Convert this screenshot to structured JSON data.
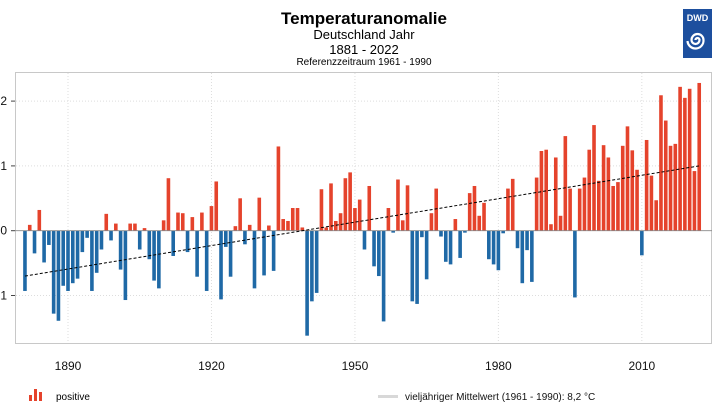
{
  "chart_data": {
    "type": "bar",
    "title": "Temperaturanomalie",
    "subtitle": "Deutschland Jahr",
    "period": "1881 - 2022",
    "reference": "Referenzzeitraum 1961 - 1990",
    "x_start": 1881,
    "x_end": 2022,
    "xlim": [
      1878,
      2024
    ],
    "ylim": [
      -1.75,
      2.5
    ],
    "x_ticks": [
      1890,
      1920,
      1950,
      1980,
      2010
    ],
    "x_tick_labels": [
      "1890",
      "1920",
      "1950",
      "1980",
      "2010"
    ],
    "y_ticks": [
      2,
      1,
      0,
      -1
    ],
    "y_tick_labels": [
      "2",
      "1",
      "0",
      "-1"
    ],
    "grid": true,
    "colors": {
      "positive": "#e5432c",
      "negative": "#1f69a6",
      "trend": "#000000",
      "logo": "#1d4f9e"
    },
    "values": [
      -0.93,
      0.09,
      -0.35,
      0.32,
      -0.49,
      -0.22,
      -1.28,
      -1.39,
      -0.85,
      -0.93,
      -0.81,
      -0.74,
      -0.33,
      -0.11,
      -0.93,
      -0.65,
      -0.29,
      0.26,
      -0.15,
      0.11,
      -0.6,
      -1.07,
      0.11,
      0.11,
      -0.29,
      0.04,
      -0.44,
      -0.77,
      -0.89,
      0.16,
      0.81,
      -0.39,
      0.28,
      0.27,
      -0.33,
      0.21,
      -0.71,
      0.28,
      -0.93,
      0.38,
      0.76,
      -1.06,
      -0.25,
      -0.71,
      0.07,
      0.5,
      -0.21,
      0.09,
      -0.89,
      0.51,
      -0.69,
      0.08,
      -0.62,
      1.3,
      0.18,
      0.15,
      0.35,
      0.35,
      0.05,
      -1.62,
      -1.09,
      -0.96,
      0.64,
      0.05,
      0.73,
      0.15,
      0.27,
      0.81,
      0.9,
      0.35,
      0.48,
      -0.29,
      0.69,
      -0.55,
      -0.7,
      -1.4,
      0.35,
      -0.03,
      0.79,
      0.16,
      0.7,
      -1.09,
      -1.13,
      -0.1,
      -0.75,
      0.27,
      0.65,
      -0.09,
      -0.48,
      -0.52,
      0.18,
      -0.42,
      -0.03,
      0.58,
      0.69,
      0.23,
      0.43,
      -0.44,
      -0.52,
      -0.61,
      -0.04,
      0.65,
      0.8,
      -0.27,
      -0.81,
      -0.3,
      -0.79,
      0.82,
      1.23,
      1.25,
      0.1,
      1.13,
      0.23,
      1.46,
      0.65,
      -1.03,
      0.65,
      0.82,
      1.25,
      1.63,
      0.77,
      1.32,
      1.13,
      0.69,
      0.75,
      1.31,
      1.61,
      1.24,
      0.94,
      -0.38,
      1.4,
      0.85,
      0.47,
      2.09,
      1.7,
      1.31,
      1.34,
      2.22,
      2.05,
      2.19,
      0.92,
      2.28
    ],
    "trend": {
      "start": [
        1881,
        -0.7
      ],
      "end": [
        2022,
        1.0
      ]
    },
    "legend": {
      "positive_label": "positive",
      "mean_label": "vieljähriger Mittelwert (1961 - 1990): 8,2 °C",
      "placement": "bottom"
    }
  },
  "logo": {
    "text": "DWD"
  }
}
